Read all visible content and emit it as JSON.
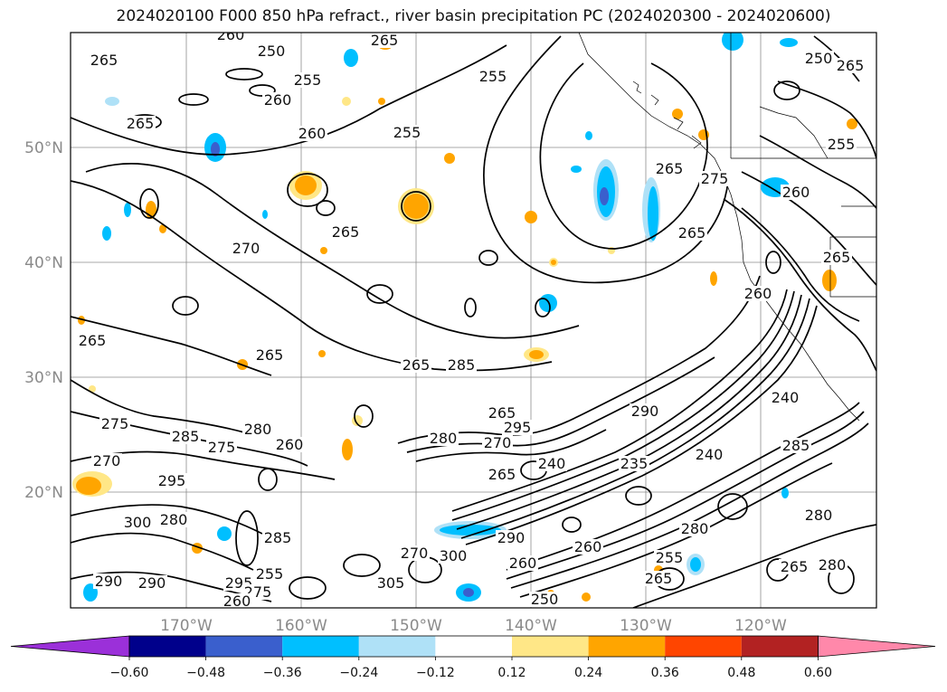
{
  "title": "2024020100 F000 850 hPa refract., river basin precipitation PC (2024020300 - 2024020600)",
  "latitude_labels": [
    "50°N",
    "40°N",
    "30°N",
    "20°N"
  ],
  "longitude_labels": [
    "170°W",
    "160°W",
    "150°W",
    "140°W",
    "130°W",
    "120°W"
  ],
  "colorbar": {
    "tick_labels": [
      "−0.60",
      "−0.48",
      "−0.36",
      "−0.24",
      "−0.12",
      "0.12",
      "0.24",
      "0.36",
      "0.48",
      "0.60"
    ],
    "colors": [
      "#9b30d9",
      "#00008b",
      "#3a5fcd",
      "#00bfff",
      "#afe1f7",
      "#ffffff",
      "#ffe787",
      "#ffa500",
      "#ff4500",
      "#b22222",
      "#ff88aa"
    ]
  },
  "contour_labels": [
    "260",
    "265",
    "250",
    "265",
    "265",
    "260",
    "255",
    "255",
    "265",
    "260",
    "255",
    "250",
    "255",
    "265",
    "275",
    "260",
    "265",
    "265",
    "270",
    "265",
    "260",
    "265",
    "265",
    "265",
    "285",
    "275",
    "280",
    "275",
    "285",
    "260",
    "265",
    "290",
    "270",
    "280",
    "270",
    "295",
    "240",
    "235",
    "240",
    "240",
    "285",
    "295",
    "300",
    "280",
    "265",
    "290",
    "285",
    "255",
    "260",
    "280",
    "270",
    "300",
    "305",
    "295",
    "275",
    "290",
    "290",
    "260",
    "250",
    "260",
    "255",
    "265",
    "280",
    "265",
    "280"
  ],
  "colors": {
    "contour": "#000000",
    "grid": "#8c8c8c",
    "neg_light": "#afe1f7",
    "neg_mid": "#00bfff",
    "neg_strong": "#3a5fcd",
    "pos_light": "#ffe787",
    "pos_mid": "#ffa500"
  }
}
